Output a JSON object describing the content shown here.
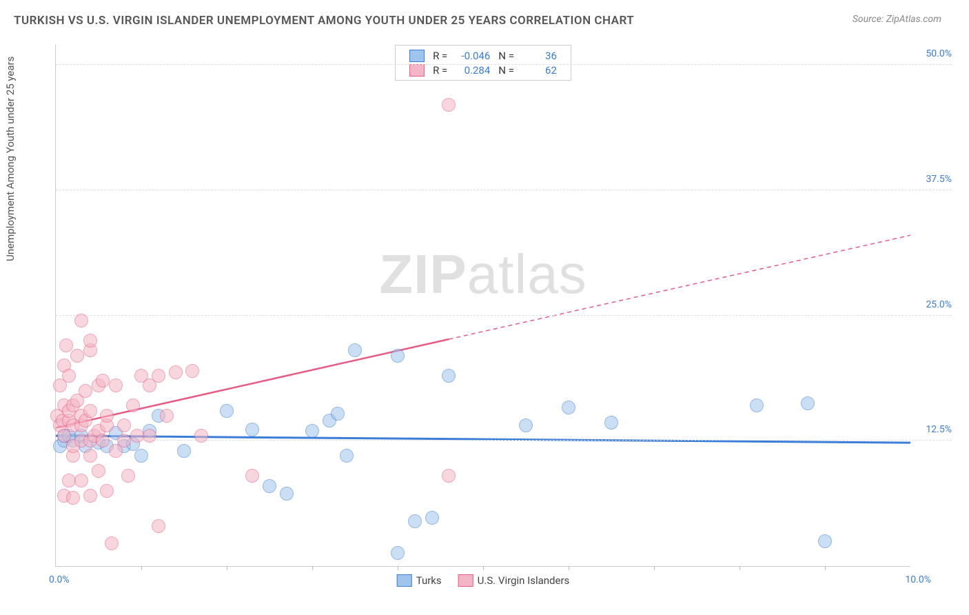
{
  "title": "TURKISH VS U.S. VIRGIN ISLANDER UNEMPLOYMENT AMONG YOUTH UNDER 25 YEARS CORRELATION CHART",
  "source_prefix": "Source: ",
  "source": "ZipAtlas.com",
  "watermark_a": "ZIP",
  "watermark_b": "atlas",
  "y_axis_label": "Unemployment Among Youth under 25 years",
  "chart": {
    "type": "scatter",
    "xlim": [
      0,
      10
    ],
    "ylim": [
      0,
      52
    ],
    "x_min_label": "0.0%",
    "x_max_label": "10.0%",
    "y_ticks": [
      {
        "v": 12.5,
        "l": "12.5%"
      },
      {
        "v": 25,
        "l": "25.0%"
      },
      {
        "v": 37.5,
        "l": "37.5%"
      },
      {
        "v": 50,
        "l": "50.0%"
      }
    ],
    "x_tick_positions": [
      1,
      2,
      3,
      4,
      5,
      6,
      7,
      8,
      9
    ],
    "grid_color": "#dddddd",
    "background_color": "#ffffff",
    "axis_color": "#cccccc",
    "tick_label_color": "#3b7dd8",
    "point_radius": 10,
    "point_opacity": 0.55,
    "series": [
      {
        "id": "turks",
        "label": "Turks",
        "fill": "#9fc5ec",
        "stroke": "#3b7dd8",
        "R_label": "R =",
        "R": "-0.046",
        "N_label": "N =",
        "N": "36",
        "points": [
          [
            0.05,
            12.0
          ],
          [
            0.1,
            12.5
          ],
          [
            0.1,
            13.0
          ],
          [
            0.15,
            13.0
          ],
          [
            0.2,
            12.5
          ],
          [
            0.3,
            13.0
          ],
          [
            0.35,
            12.0
          ],
          [
            0.5,
            12.3
          ],
          [
            0.6,
            12.0
          ],
          [
            0.7,
            13.3
          ],
          [
            0.8,
            12.0
          ],
          [
            0.9,
            12.2
          ],
          [
            1.0,
            11.0
          ],
          [
            1.1,
            13.5
          ],
          [
            1.2,
            15.0
          ],
          [
            1.5,
            11.5
          ],
          [
            2.0,
            15.5
          ],
          [
            2.3,
            13.6
          ],
          [
            2.5,
            8.0
          ],
          [
            2.7,
            7.2
          ],
          [
            3.0,
            13.5
          ],
          [
            3.2,
            14.5
          ],
          [
            3.3,
            15.2
          ],
          [
            3.4,
            11.0
          ],
          [
            3.5,
            21.5
          ],
          [
            4.0,
            21.0
          ],
          [
            4.0,
            1.3
          ],
          [
            4.2,
            4.5
          ],
          [
            4.4,
            4.8
          ],
          [
            4.6,
            19.0
          ],
          [
            5.5,
            14.0
          ],
          [
            6.0,
            15.8
          ],
          [
            6.5,
            14.3
          ],
          [
            8.2,
            16.0
          ],
          [
            8.8,
            16.2
          ],
          [
            9.0,
            2.5
          ]
        ],
        "trend": {
          "y_at_xmin": 13.0,
          "y_at_xmax": 12.3,
          "width": 3,
          "dash": ""
        }
      },
      {
        "id": "usvi",
        "label": "U.S. Virgin Islanders",
        "fill": "#f4b5c4",
        "stroke": "#e85a84",
        "R_label": "R =",
        "R": "0.284",
        "N_label": "N =",
        "N": "62",
        "points": [
          [
            0.02,
            15.0
          ],
          [
            0.05,
            14.0
          ],
          [
            0.05,
            18.0
          ],
          [
            0.08,
            14.5
          ],
          [
            0.1,
            7.0
          ],
          [
            0.1,
            13.0
          ],
          [
            0.1,
            16.0
          ],
          [
            0.1,
            20.0
          ],
          [
            0.12,
            22.0
          ],
          [
            0.15,
            8.5
          ],
          [
            0.15,
            14.5
          ],
          [
            0.15,
            15.5
          ],
          [
            0.15,
            19.0
          ],
          [
            0.2,
            6.8
          ],
          [
            0.2,
            11.0
          ],
          [
            0.2,
            12.0
          ],
          [
            0.2,
            14.0
          ],
          [
            0.2,
            16.0
          ],
          [
            0.25,
            16.5
          ],
          [
            0.25,
            21.0
          ],
          [
            0.3,
            8.5
          ],
          [
            0.3,
            12.5
          ],
          [
            0.3,
            14.0
          ],
          [
            0.3,
            15.0
          ],
          [
            0.3,
            24.5
          ],
          [
            0.35,
            14.5
          ],
          [
            0.35,
            17.5
          ],
          [
            0.4,
            7.0
          ],
          [
            0.4,
            11.0
          ],
          [
            0.4,
            12.5
          ],
          [
            0.4,
            15.5
          ],
          [
            0.4,
            21.5
          ],
          [
            0.4,
            22.5
          ],
          [
            0.45,
            13.0
          ],
          [
            0.5,
            9.5
          ],
          [
            0.5,
            13.5
          ],
          [
            0.5,
            18.0
          ],
          [
            0.55,
            12.5
          ],
          [
            0.55,
            18.5
          ],
          [
            0.6,
            7.5
          ],
          [
            0.6,
            14.0
          ],
          [
            0.6,
            15.0
          ],
          [
            0.65,
            2.3
          ],
          [
            0.7,
            11.5
          ],
          [
            0.7,
            18.0
          ],
          [
            0.8,
            12.5
          ],
          [
            0.8,
            14.0
          ],
          [
            0.85,
            9.0
          ],
          [
            0.9,
            16.0
          ],
          [
            0.95,
            13.0
          ],
          [
            1.0,
            19.0
          ],
          [
            1.1,
            13.0
          ],
          [
            1.1,
            18.0
          ],
          [
            1.2,
            4.0
          ],
          [
            1.2,
            19.0
          ],
          [
            1.3,
            15.0
          ],
          [
            1.4,
            19.3
          ],
          [
            1.6,
            19.5
          ],
          [
            1.7,
            13.0
          ],
          [
            2.3,
            9.0
          ],
          [
            4.6,
            9.0
          ],
          [
            4.6,
            46.0
          ]
        ],
        "trend": {
          "y_at_xmin": 13.8,
          "y_at_xmid": 23.0,
          "y_at_xmax": 33.0,
          "x_solid_end": 4.6,
          "width": 2.5,
          "dash": "6,5"
        }
      }
    ]
  }
}
